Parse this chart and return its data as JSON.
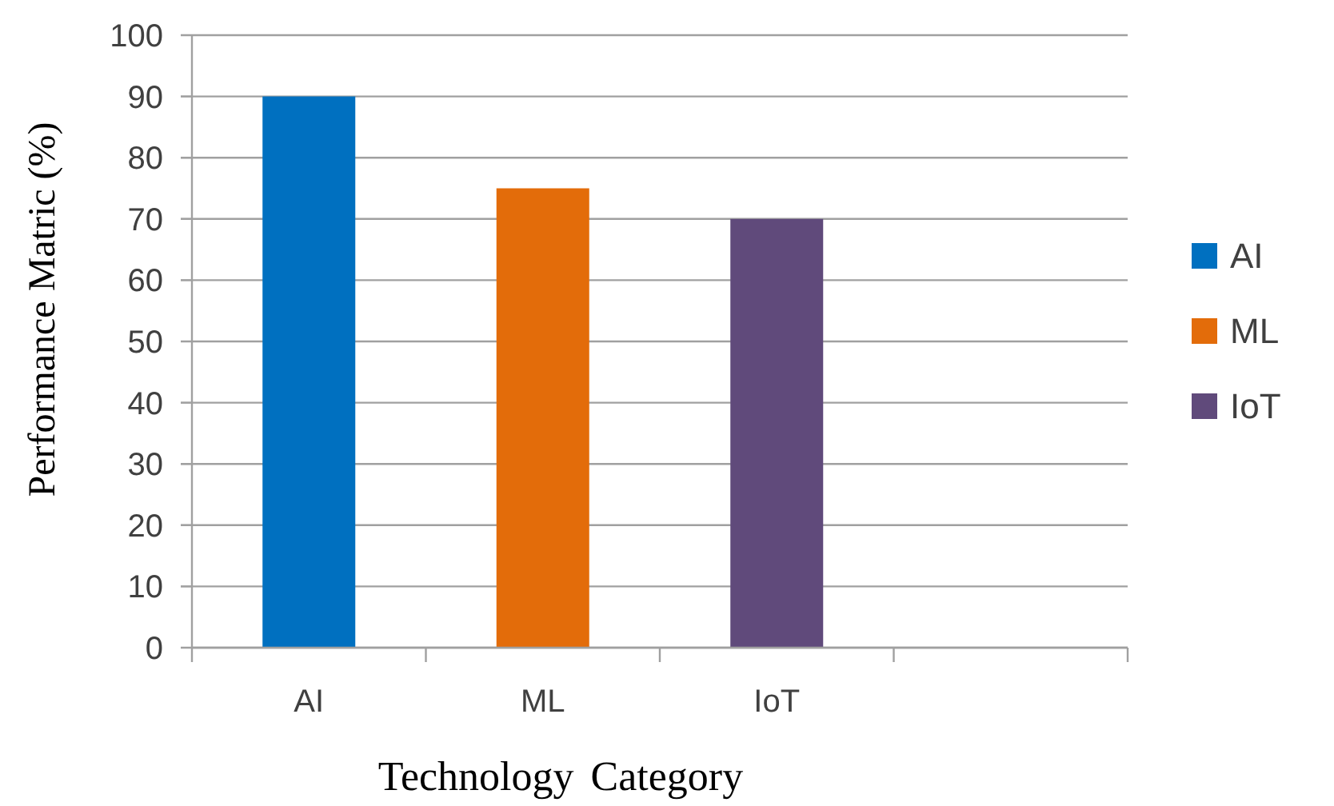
{
  "chart_data": {
    "type": "bar",
    "xlabel": "Technology Category",
    "ylabel": "Performance Matric (%)",
    "categories": [
      "AI",
      "ML",
      "IoT",
      null
    ],
    "series": [
      {
        "name": "AI",
        "color": "#0070c0",
        "values": [
          90,
          null,
          null,
          null
        ]
      },
      {
        "name": "ML",
        "color": "#e36c0a",
        "values": [
          null,
          75,
          null,
          null
        ]
      },
      {
        "name": "IoT",
        "color": "#604a7b",
        "values": [
          null,
          null,
          70,
          null
        ]
      }
    ],
    "ylim": [
      0,
      100
    ],
    "yticks": [
      0,
      10,
      20,
      30,
      40,
      50,
      60,
      70,
      80,
      90,
      100
    ],
    "grid": "y",
    "legend": "right"
  }
}
